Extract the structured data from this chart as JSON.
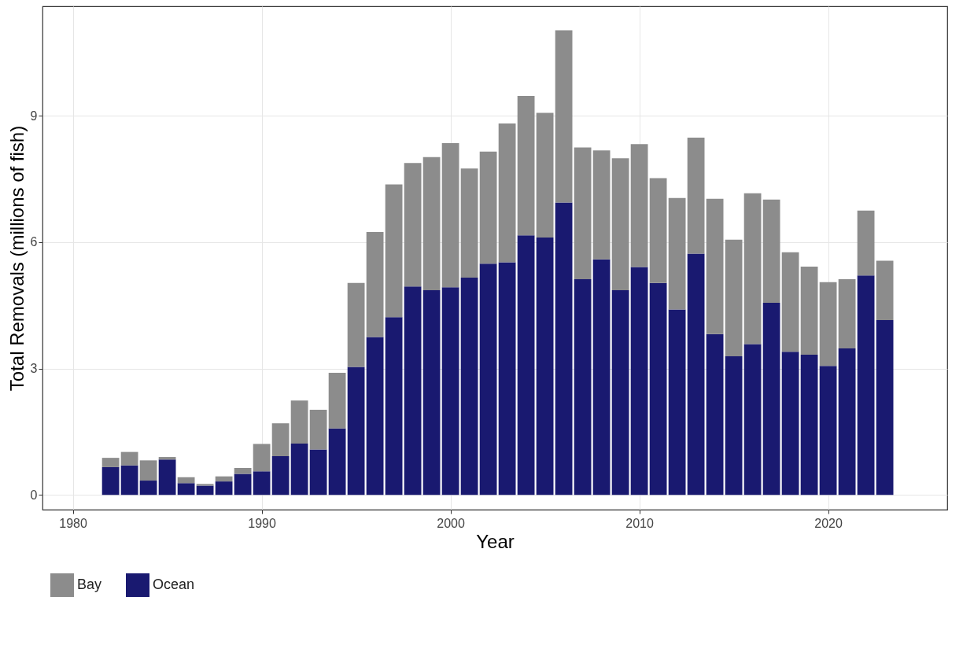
{
  "chart_data": {
    "type": "bar",
    "stacked": true,
    "xlabel": "Year",
    "ylabel": "Total Removals (millions of fish)",
    "x": [
      1982,
      1983,
      1984,
      1985,
      1986,
      1987,
      1988,
      1989,
      1990,
      1991,
      1992,
      1993,
      1994,
      1995,
      1996,
      1997,
      1998,
      1999,
      2000,
      2001,
      2002,
      2003,
      2004,
      2005,
      2006,
      2007,
      2008,
      2009,
      2010,
      2011,
      2012,
      2013,
      2014,
      2015,
      2016,
      2017,
      2018,
      2019,
      2020,
      2021,
      2022,
      2023
    ],
    "series": [
      {
        "name": "Ocean",
        "color": "#191970",
        "values": [
          0.66,
          0.7,
          0.34,
          0.84,
          0.28,
          0.22,
          0.32,
          0.5,
          0.56,
          0.92,
          1.22,
          1.08,
          1.58,
          3.04,
          3.75,
          4.22,
          4.95,
          4.86,
          4.93,
          5.16,
          5.49,
          5.52,
          6.16,
          6.11,
          6.94,
          5.12,
          5.59,
          4.86,
          5.41,
          5.03,
          4.4,
          5.73,
          3.82,
          3.29,
          3.58,
          4.56,
          3.4,
          3.33,
          3.06,
          3.48,
          5.21,
          4.15
        ]
      },
      {
        "name": "Bay",
        "color": "#8c8c8c",
        "values": [
          0.22,
          0.32,
          0.48,
          0.06,
          0.14,
          0.04,
          0.12,
          0.14,
          0.65,
          0.78,
          1.02,
          0.94,
          1.32,
          1.99,
          2.49,
          3.15,
          2.93,
          3.16,
          3.42,
          2.59,
          2.66,
          3.3,
          3.31,
          2.96,
          4.09,
          3.13,
          2.59,
          3.13,
          2.92,
          2.49,
          2.65,
          2.75,
          3.21,
          2.77,
          3.58,
          2.45,
          2.36,
          2.09,
          1.99,
          1.64,
          1.54,
          1.41
        ]
      }
    ],
    "xlim": [
      1978.6,
      2026.1
    ],
    "xticks": [
      1980,
      1990,
      2000,
      2010,
      2020
    ],
    "ylim": [
      -0.35,
      11.6
    ],
    "yticks": [
      0,
      3,
      6,
      9
    ],
    "grid": true,
    "legend": "bottom"
  }
}
